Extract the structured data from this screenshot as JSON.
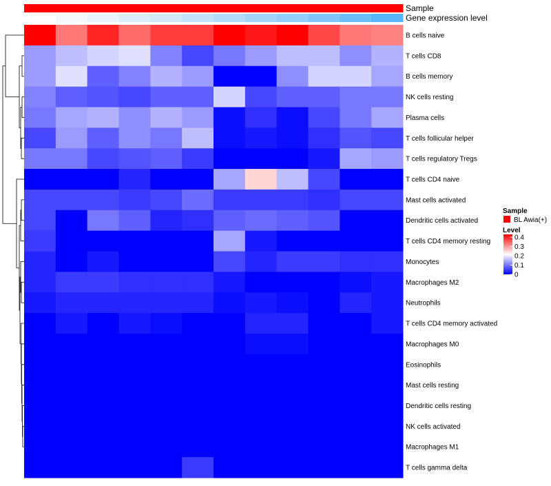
{
  "annotation_tracks": [
    {
      "label": "Sample",
      "colors": [
        "#ff0000",
        "#ff0000",
        "#ff0000",
        "#ff0000",
        "#ff0000",
        "#ff0000",
        "#ff0000",
        "#ff0000",
        "#ff0000",
        "#ff0000",
        "#ff0000",
        "#ff0000"
      ]
    },
    {
      "label": "Gene expression level",
      "colors": [
        "#ffffff",
        "#f5f9fc",
        "#e9f3fa",
        "#dcedf9",
        "#d0e8f8",
        "#c2e2f8",
        "#b3dcf8",
        "#a3d5f8",
        "#92cef8",
        "#80c6f8",
        "#6cbef8",
        "#58b6f8"
      ]
    }
  ],
  "legend": {
    "sample_title": "Sample",
    "sample_items": [
      {
        "label": "BL Awia(+)",
        "color": "#ff0000"
      }
    ],
    "level_title": "Level",
    "level_ticks": [
      "0.4",
      "0.3",
      "0.2",
      "0.1",
      "0"
    ],
    "level_tick_values": [
      0.4,
      0.3,
      0.2,
      0.1,
      0
    ],
    "scale_min": 0,
    "scale_max": 0.43,
    "colors": [
      "#0000ff",
      "#ffffff",
      "#ff0000"
    ]
  },
  "chart_data": {
    "type": "heatmap",
    "title": "",
    "rows": [
      "B cells naive",
      "T cells CD8",
      "B cells memory",
      "NK cells resting",
      "Plasma cells",
      "T cells follicular helper",
      "T cells regulatory  Tregs",
      "T cells CD4 naive",
      "Mast cells activated",
      "Dendritic cells activated",
      "T cells CD4 memory resting",
      "Monocytes",
      "Macrophages M2",
      "Neutrophils",
      "T cells CD4 memory activated",
      "Macrophages M0",
      "Eosinophils",
      "Mast cells resting",
      "Dendritic cells resting",
      "NK cells activated",
      "Macrophages M1",
      "T cells gamma delta"
    ],
    "values": [
      [
        0.43,
        0.33,
        0.4,
        0.34,
        0.38,
        0.38,
        0.43,
        0.41,
        0.43,
        0.37,
        0.33,
        0.32
      ],
      [
        0.13,
        0.16,
        0.18,
        0.19,
        0.11,
        0.06,
        0.1,
        0.13,
        0.16,
        0.16,
        0.12,
        0.15
      ],
      [
        0.13,
        0.19,
        0.08,
        0.11,
        0.15,
        0.13,
        0.0,
        0.0,
        0.12,
        0.18,
        0.18,
        0.14
      ],
      [
        0.11,
        0.08,
        0.07,
        0.06,
        0.08,
        0.08,
        0.18,
        0.06,
        0.08,
        0.08,
        0.1,
        0.1
      ],
      [
        0.1,
        0.14,
        0.15,
        0.12,
        0.15,
        0.13,
        0.01,
        0.04,
        0.01,
        0.06,
        0.1,
        0.14
      ],
      [
        0.06,
        0.13,
        0.08,
        0.12,
        0.1,
        0.16,
        0.01,
        0.02,
        0.01,
        0.04,
        0.07,
        0.06
      ],
      [
        0.1,
        0.1,
        0.06,
        0.07,
        0.08,
        0.05,
        0.0,
        0.0,
        0.0,
        0.02,
        0.14,
        0.13
      ],
      [
        0.0,
        0.0,
        0.0,
        0.03,
        0.0,
        0.0,
        0.14,
        0.25,
        0.16,
        0.06,
        0.0,
        0.0
      ],
      [
        0.06,
        0.06,
        0.06,
        0.05,
        0.06,
        0.09,
        0.05,
        0.05,
        0.05,
        0.04,
        0.06,
        0.06
      ],
      [
        0.06,
        0.0,
        0.1,
        0.08,
        0.03,
        0.04,
        0.08,
        0.09,
        0.08,
        0.07,
        0.0,
        0.0
      ],
      [
        0.05,
        0.0,
        0.0,
        0.0,
        0.0,
        0.0,
        0.14,
        0.02,
        0.0,
        0.0,
        0.0,
        0.0
      ],
      [
        0.03,
        0.0,
        0.02,
        0.0,
        0.0,
        0.0,
        0.06,
        0.03,
        0.05,
        0.05,
        0.04,
        0.04
      ],
      [
        0.03,
        0.05,
        0.05,
        0.04,
        0.04,
        0.04,
        0.02,
        0.0,
        0.0,
        0.0,
        0.01,
        0.02
      ],
      [
        0.02,
        0.03,
        0.03,
        0.03,
        0.03,
        0.03,
        0.01,
        0.02,
        0.01,
        0.0,
        0.03,
        0.02
      ],
      [
        0.0,
        0.02,
        0.0,
        0.02,
        0.01,
        0.0,
        0.0,
        0.03,
        0.03,
        0.0,
        0.0,
        0.02
      ],
      [
        0.0,
        0.0,
        0.0,
        0.0,
        0.0,
        0.0,
        0.0,
        0.01,
        0.01,
        0.0,
        0.0,
        0.0
      ],
      [
        0.0,
        0.0,
        0.0,
        0.0,
        0.0,
        0.0,
        0.0,
        0.0,
        0.0,
        0.0,
        0.0,
        0.0
      ],
      [
        0.0,
        0.0,
        0.0,
        0.0,
        0.0,
        0.0,
        0.0,
        0.0,
        0.0,
        0.0,
        0.0,
        0.0
      ],
      [
        0.0,
        0.0,
        0.0,
        0.0,
        0.0,
        0.0,
        0.0,
        0.0,
        0.0,
        0.0,
        0.0,
        0.0
      ],
      [
        0.0,
        0.0,
        0.0,
        0.0,
        0.0,
        0.0,
        0.0,
        0.0,
        0.0,
        0.0,
        0.0,
        0.0
      ],
      [
        0.0,
        0.0,
        0.0,
        0.0,
        0.0,
        0.0,
        0.0,
        0.0,
        0.0,
        0.0,
        0.0,
        0.0
      ],
      [
        0.0,
        0.0,
        0.0,
        0.0,
        0.0,
        0.05,
        0.0,
        0.0,
        0.0,
        0.0,
        0.0,
        0.0
      ]
    ],
    "dendrogram": "row-clustering tree drawn on the left"
  }
}
